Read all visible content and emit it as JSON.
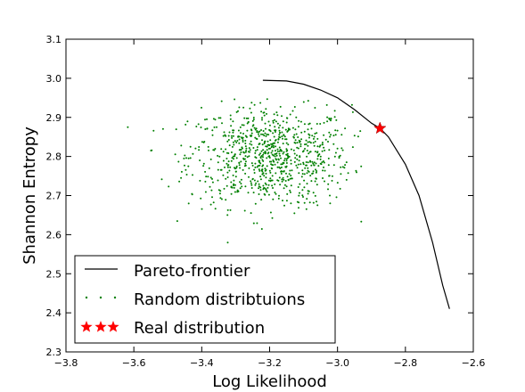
{
  "chart_data": {
    "type": "scatter",
    "xlabel": "Log Likelihood",
    "ylabel": "Shannon Entropy",
    "xlim": [
      -3.8,
      -2.6
    ],
    "ylim": [
      2.3,
      3.1
    ],
    "xticks": [
      -3.8,
      -3.6,
      -3.4,
      -3.2,
      -3.0,
      -2.8,
      -2.6
    ],
    "xtick_labels": [
      "−3.8",
      "−3.6",
      "−3.4",
      "−3.2",
      "−3.0",
      "−2.8",
      "−2.6"
    ],
    "yticks": [
      2.3,
      2.4,
      2.5,
      2.6,
      2.7,
      2.8,
      2.9,
      3.0,
      3.1
    ],
    "ytick_labels": [
      "2.3",
      "2.4",
      "2.5",
      "2.6",
      "2.7",
      "2.8",
      "2.9",
      "3.0",
      "3.1"
    ],
    "grid": false,
    "legend_position": "bottom-left",
    "series": [
      {
        "name": "Pareto-frontier",
        "kind": "line",
        "color": "#000000",
        "x": [
          -3.22,
          -3.15,
          -3.1,
          -3.05,
          -3.0,
          -2.95,
          -2.9,
          -2.875,
          -2.85,
          -2.8,
          -2.76,
          -2.72,
          -2.69,
          -2.67
        ],
        "y": [
          2.995,
          2.993,
          2.985,
          2.97,
          2.95,
          2.92,
          2.885,
          2.872,
          2.85,
          2.78,
          2.7,
          2.58,
          2.47,
          2.41
        ]
      },
      {
        "name": "Random distribtuions",
        "kind": "scatter",
        "color": "#008000",
        "center": [
          -3.2,
          2.8
        ],
        "spread": [
          0.12,
          0.065
        ],
        "count": 850,
        "x_range": [
          -3.63,
          -2.92
        ],
        "y_range": [
          2.56,
          2.95
        ]
      },
      {
        "name": "Real distribution",
        "kind": "marker",
        "marker": "star",
        "color": "#ff0000",
        "x": [
          -2.875
        ],
        "y": [
          2.872
        ]
      }
    ]
  }
}
